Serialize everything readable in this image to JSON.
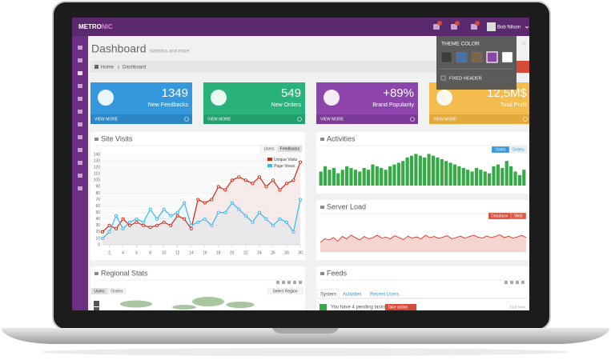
{
  "header": {
    "logo_main": "METRO",
    "logo_accent": "NIC",
    "user": "Bob Nilson"
  },
  "page": {
    "title": "Dashboard",
    "subtitle": "statistics and more"
  },
  "breadcrumb": [
    "Home",
    "Dashboard"
  ],
  "stats": [
    {
      "value": "1349",
      "label": "New Feedbacks",
      "more": "VIEW MORE",
      "color": "#3598dc",
      "footer": "#2a86c5"
    },
    {
      "value": "549",
      "label": "New Orders",
      "more": "VIEW MORE",
      "color": "#2ab27b",
      "footer": "#22a06c"
    },
    {
      "value": "+89%",
      "label": "Brand Popularity",
      "more": "VIEW MORE",
      "color": "#8e44ad",
      "footer": "#7c3a98"
    },
    {
      "value": "12,5M$",
      "label": "Total Profit",
      "more": "VIEW MORE",
      "color": "#f4bb4f",
      "footer": "#e3a93c"
    }
  ],
  "theme_panel": {
    "title": "THEME COLOR",
    "option": "FIXED HEADER",
    "swatches": [
      "#3d3d3d",
      "#4a72a8",
      "#7d6648",
      "#8e44ad",
      "#ffffff"
    ]
  },
  "panels": {
    "site_visits": {
      "title": "Site Visits",
      "buttons": [
        "Users",
        "Feedbacks"
      ]
    },
    "activities": {
      "title": "Activities",
      "buttons": [
        "Users",
        "Orders"
      ]
    },
    "server_load": {
      "title": "Server Load",
      "buttons": [
        "Database",
        "Web"
      ]
    },
    "regional": {
      "title": "Regional Stats",
      "buttons": [
        "Users",
        "Orders"
      ],
      "select": "Select Region"
    },
    "feeds": {
      "title": "Feeds",
      "tabs": [
        "System",
        "Activities",
        "Recent Users"
      ],
      "item": "You have 4 pending tasks.",
      "badge": "Take action",
      "time": "Just now"
    }
  },
  "chart_data": [
    {
      "type": "line",
      "x": [
        1,
        2,
        3,
        4,
        5,
        6,
        7,
        8,
        9,
        10,
        11,
        12,
        13,
        14,
        15,
        16,
        17,
        18,
        19,
        20,
        21,
        22,
        23,
        24,
        25,
        26,
        27,
        28,
        29,
        30
      ],
      "xlim": [
        1,
        30
      ],
      "xticks": [
        2,
        4,
        6,
        8,
        10,
        12,
        14,
        16,
        18,
        20,
        22,
        24,
        26,
        28,
        30
      ],
      "ylim": [
        0,
        140
      ],
      "yticks": [
        0,
        10,
        20,
        30,
        40,
        50,
        60,
        70,
        80,
        90,
        100,
        110,
        120,
        130,
        140
      ],
      "grid": true,
      "series": [
        {
          "name": "Unique Visits",
          "color": "#d12610",
          "values": [
            20,
            30,
            25,
            40,
            30,
            35,
            30,
            27,
            30,
            35,
            30,
            45,
            40,
            25,
            70,
            65,
            70,
            90,
            85,
            100,
            105,
            100,
            95,
            105,
            90,
            100,
            85,
            95,
            100,
            128
          ]
        },
        {
          "name": "Page Views",
          "color": "#37b7f3",
          "values": [
            10,
            20,
            45,
            25,
            35,
            40,
            35,
            55,
            40,
            55,
            45,
            50,
            65,
            30,
            35,
            40,
            30,
            50,
            50,
            65,
            55,
            45,
            35,
            50,
            40,
            30,
            40,
            35,
            20,
            70
          ]
        }
      ]
    },
    {
      "type": "bar",
      "color": "#35aa47",
      "ylim": [
        0,
        100
      ],
      "values": [
        40,
        55,
        45,
        50,
        35,
        45,
        55,
        50,
        45,
        40,
        50,
        45,
        60,
        55,
        50,
        45,
        55,
        60,
        65,
        70,
        80,
        85,
        90,
        85,
        80,
        90,
        85,
        80,
        75,
        70,
        65,
        60,
        55,
        50,
        45,
        40,
        50,
        45,
        40,
        35,
        55,
        60,
        50,
        70,
        55,
        40,
        30,
        45
      ]
    },
    {
      "type": "area",
      "color": "#d12610",
      "ylim": [
        0,
        100
      ],
      "values": [
        40,
        55,
        50,
        60,
        45,
        65,
        55,
        70,
        60,
        50,
        65,
        55,
        60,
        70,
        58,
        62,
        55,
        68,
        60,
        52,
        66,
        58,
        63,
        55,
        70,
        60,
        65,
        57,
        62,
        68,
        55,
        60,
        66,
        58,
        64,
        70,
        62,
        58,
        67,
        60,
        65,
        72,
        60,
        66,
        58,
        63,
        69,
        61
      ]
    }
  ]
}
